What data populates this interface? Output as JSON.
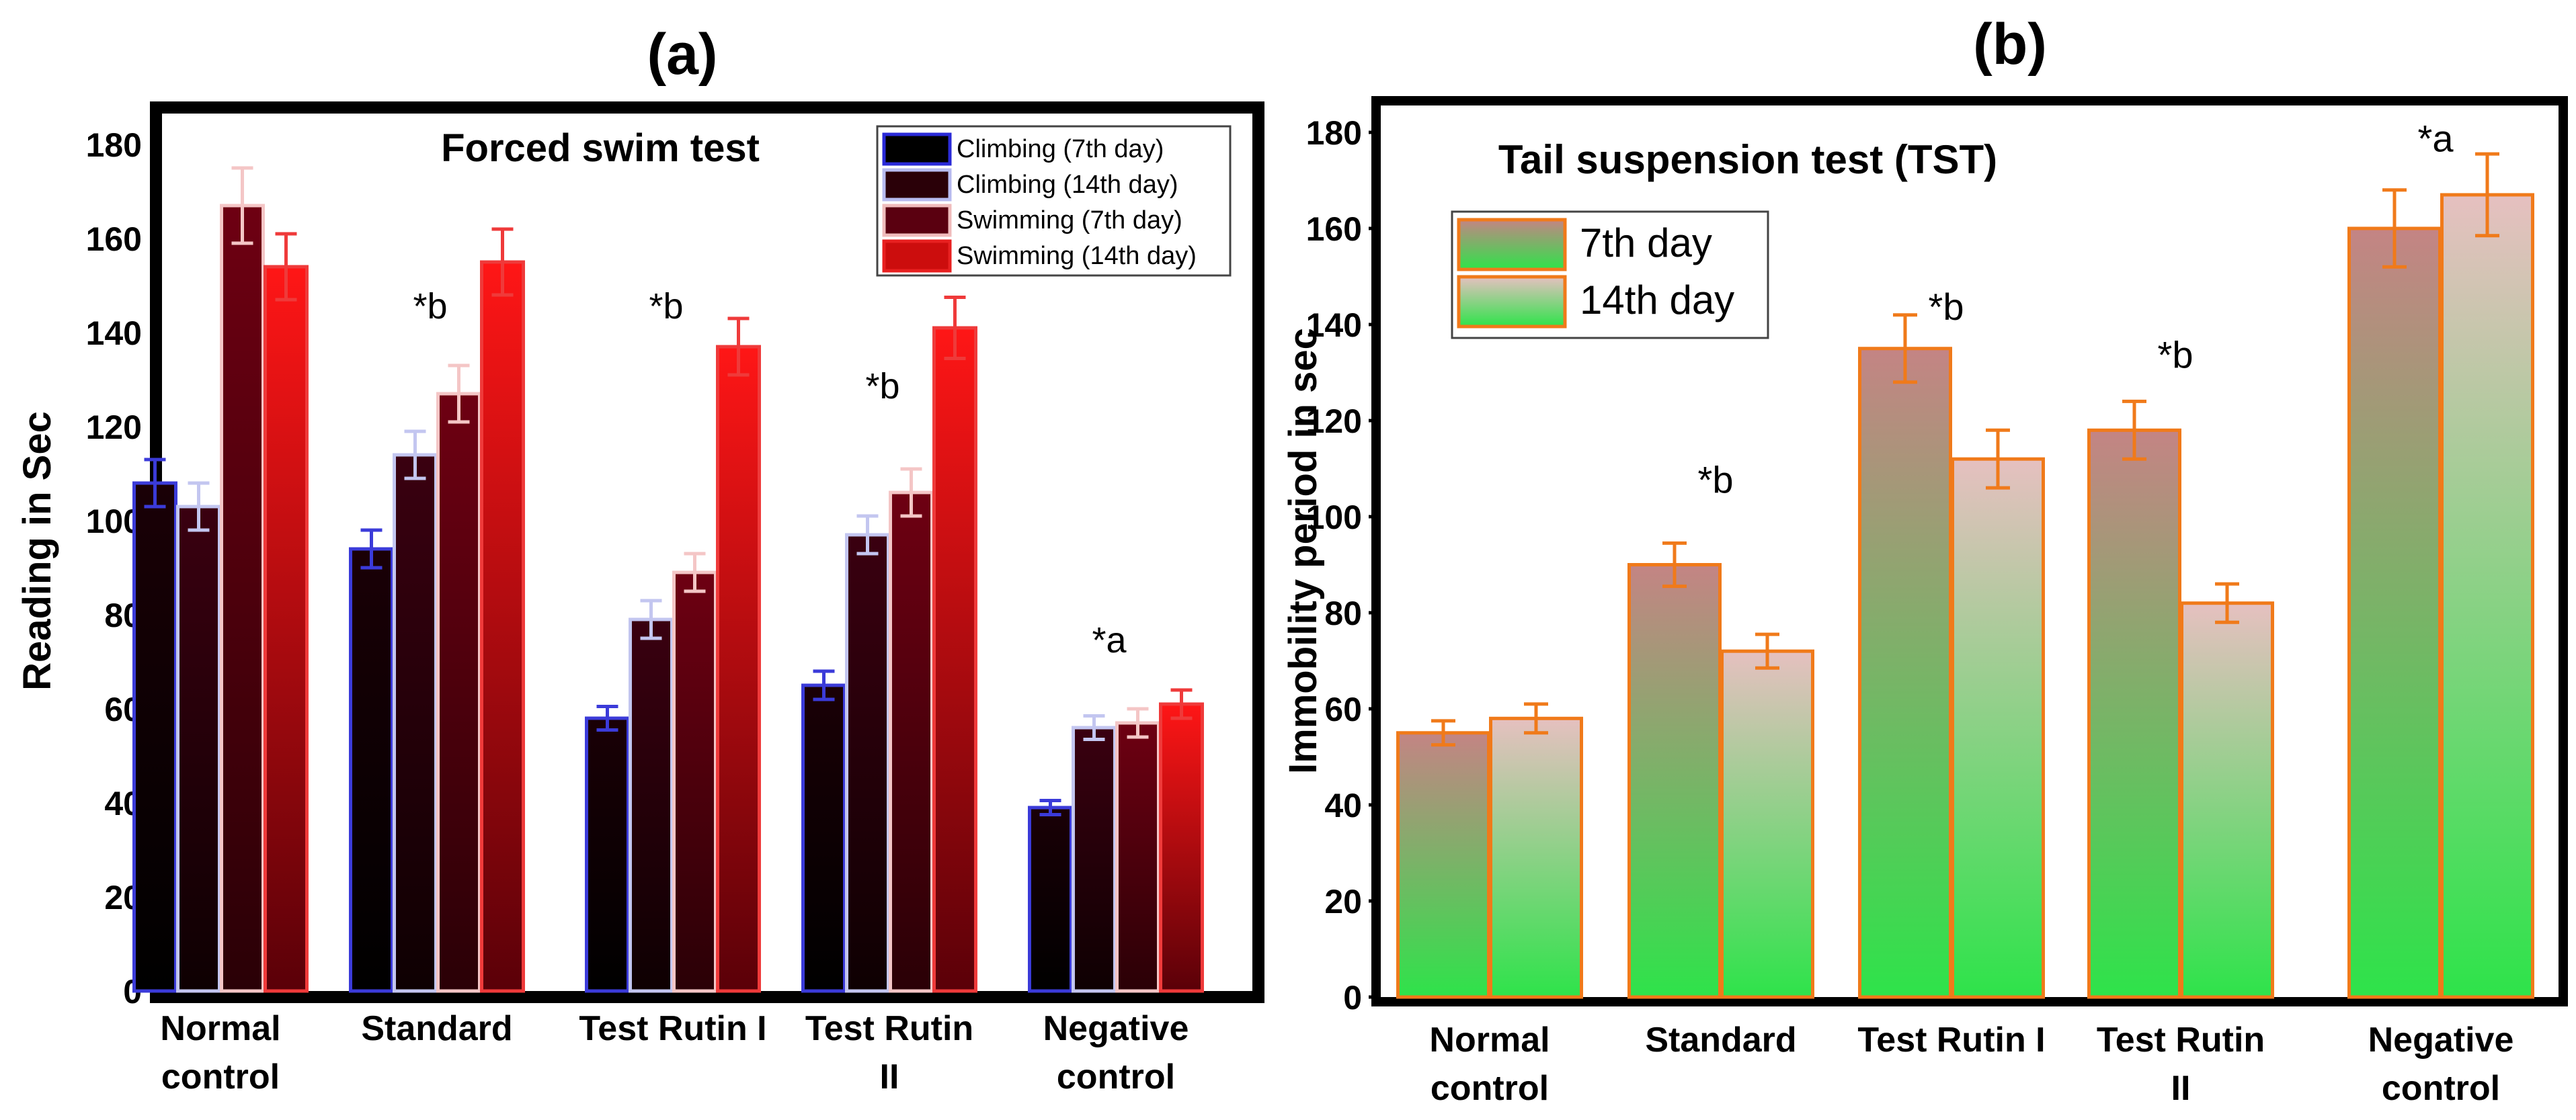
{
  "chart_data": [
    {
      "type": "bar",
      "panel_label": "(a)",
      "title": "Forced swim test",
      "xlabel": "",
      "ylabel": "Reading in Sec",
      "ylim": [
        0,
        190
      ],
      "yticks": [
        0,
        20,
        40,
        60,
        80,
        100,
        120,
        140,
        160,
        180
      ],
      "grid": false,
      "legend_position": "top-right",
      "categories": [
        [
          "Normal",
          "control"
        ],
        [
          "Standard"
        ],
        [
          "Test Rutin I"
        ],
        [
          "Test Rutin",
          "II"
        ],
        [
          "Negative",
          "control"
        ]
      ],
      "series": [
        {
          "name": "Climbing (7th day)",
          "values": [
            108,
            94,
            58,
            65,
            39
          ],
          "errors": [
            5,
            4,
            2.5,
            3,
            1.5
          ],
          "fill_top": "#1a0006",
          "fill_bottom": "#000000",
          "edge": "#3b3bd9",
          "legend_fill": "#000000",
          "legend_edge": "#2a2ad8"
        },
        {
          "name": "Climbing (14th day)",
          "values": [
            103,
            114,
            79,
            97,
            56
          ],
          "errors": [
            5,
            5,
            4,
            4,
            2.5
          ],
          "fill_top": "#3a0010",
          "fill_bottom": "#0e0002",
          "edge": "#c3c6f0",
          "legend_fill": "#2a0008",
          "legend_edge": "#b8bbf0"
        },
        {
          "name": "Swimming (7th day)",
          "values": [
            167,
            127,
            89,
            106,
            57
          ],
          "errors": [
            8,
            6,
            4,
            5,
            3
          ],
          "fill_top": "#6e0012",
          "fill_bottom": "#2a0006",
          "edge": "#f4c6c6",
          "legend_fill": "#5a0010",
          "legend_edge": "#f0bcbc"
        },
        {
          "name": "Swimming (14th day)",
          "values": [
            154,
            155,
            137,
            141,
            61
          ],
          "errors": [
            7,
            7,
            6,
            6.5,
            3
          ],
          "fill_top": "#ff1616",
          "fill_bottom": "#5a0008",
          "edge": "#ef3a3a",
          "legend_fill": "#cc0d0d",
          "legend_edge": "#e82020"
        }
      ],
      "annotations": [
        {
          "text": "*b",
          "category": 1,
          "y": 143
        },
        {
          "text": "*b",
          "category": 2,
          "y": 143
        },
        {
          "text": "*b",
          "category": 3,
          "y": 126
        },
        {
          "text": "*a",
          "category": 4,
          "y": 72
        }
      ]
    },
    {
      "type": "bar",
      "panel_label": "(b)",
      "title": "Tail suspension test (TST)",
      "xlabel": "",
      "ylabel": "Immobility period in sec",
      "ylim": [
        0,
        185
      ],
      "yticks": [
        0,
        20,
        40,
        60,
        80,
        100,
        120,
        140,
        160,
        180
      ],
      "grid": false,
      "legend_position": "top-left",
      "categories": [
        [
          "Normal",
          "control"
        ],
        [
          "Standard"
        ],
        [
          "Test Rutin I"
        ],
        [
          "Test Rutin",
          "II"
        ],
        [
          "Negative",
          "control"
        ]
      ],
      "series": [
        {
          "name": "7th day",
          "values": [
            55,
            90,
            135,
            118,
            160
          ],
          "errors": [
            2.5,
            4.5,
            7,
            6,
            8
          ],
          "fill_top": "#c48484",
          "fill_bottom": "#2ee34a",
          "edge": "#f07a1a"
        },
        {
          "name": "14th day",
          "values": [
            58,
            72,
            112,
            82,
            167
          ],
          "errors": [
            3,
            3.5,
            6,
            4,
            8.5
          ],
          "fill_top": "#e6c0c0",
          "fill_bottom": "#2ee34a",
          "edge": "#f07a1a"
        }
      ],
      "annotations": [
        {
          "text": "*b",
          "category": 1,
          "y": 105
        },
        {
          "text": "*b",
          "category": 2,
          "y": 141
        },
        {
          "text": "*b",
          "category": 3,
          "y": 131
        },
        {
          "text": "*a",
          "category": 4,
          "y": 176
        }
      ]
    }
  ]
}
